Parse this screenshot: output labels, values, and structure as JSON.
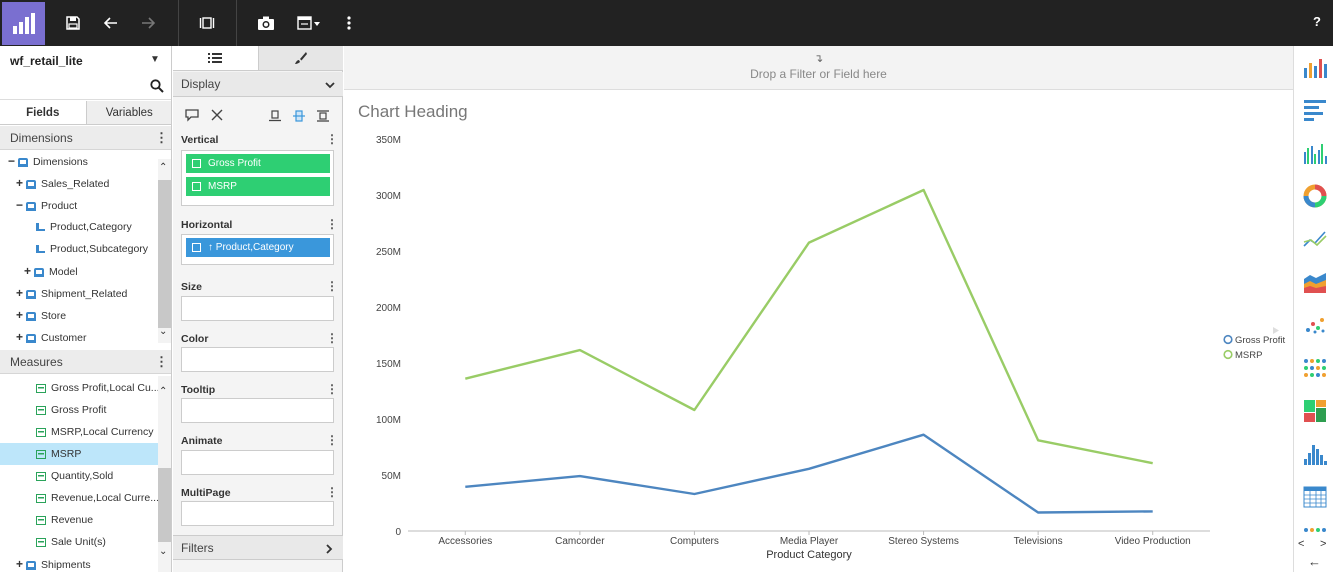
{
  "toolbar": {
    "help_label": "?"
  },
  "left_panel": {
    "datasource": "wf_retail_lite",
    "tabs": [
      "Fields",
      "Variables"
    ],
    "dimensions_header": "Dimensions",
    "dimensions_tree": [
      {
        "label": "Dimensions",
        "toggle": "−",
        "icon": "dim"
      },
      {
        "label": "Sales_Related",
        "toggle": "+",
        "icon": "dim"
      },
      {
        "label": "Product",
        "toggle": "−",
        "icon": "dim"
      },
      {
        "label": "Product,Category",
        "toggle": "",
        "icon": "lvl"
      },
      {
        "label": "Product,Subcategory",
        "toggle": "",
        "icon": "lvl"
      },
      {
        "label": "Model",
        "toggle": "+",
        "icon": "dim"
      },
      {
        "label": "Shipment_Related",
        "toggle": "+",
        "icon": "dim"
      },
      {
        "label": "Store",
        "toggle": "+",
        "icon": "dim"
      },
      {
        "label": "Customer",
        "toggle": "+",
        "icon": "dim"
      }
    ],
    "measures_header": "Measures",
    "measures_tree": [
      {
        "label": "Gross Profit,Local Cu...",
        "toggle": "",
        "icon": "meas"
      },
      {
        "label": "Gross Profit",
        "toggle": "",
        "icon": "meas"
      },
      {
        "label": "MSRP,Local Currency",
        "toggle": "",
        "icon": "meas"
      },
      {
        "label": "MSRP",
        "toggle": "",
        "icon": "meas",
        "selected": true
      },
      {
        "label": "Quantity,Sold",
        "toggle": "",
        "icon": "meas"
      },
      {
        "label": "Revenue,Local Curre...",
        "toggle": "",
        "icon": "meas"
      },
      {
        "label": "Revenue",
        "toggle": "",
        "icon": "meas"
      },
      {
        "label": "Sale Unit(s)",
        "toggle": "",
        "icon": "meas"
      },
      {
        "label": "Shipments",
        "toggle": "+",
        "icon": "dim"
      }
    ]
  },
  "query_panel": {
    "display_header": "Display",
    "vertical_label": "Vertical",
    "vertical_items": [
      "Gross Profit",
      "MSRP"
    ],
    "horizontal_label": "Horizontal",
    "horizontal_items": [
      "↑ Product,Category"
    ],
    "size_label": "Size",
    "color_label": "Color",
    "tooltip_label": "Tooltip",
    "animate_label": "Animate",
    "multipage_label": "MultiPage",
    "filters_header": "Filters"
  },
  "canvas": {
    "drop_hint": "Drop a Filter or Field here",
    "chart_heading": "Chart Heading"
  },
  "colors": {
    "gross_profit": "#4d86c0",
    "msrp": "#99cc66",
    "accent": "#7a6fd0"
  },
  "chart_data": {
    "type": "line",
    "title": "Chart Heading",
    "xlabel": "Product Category",
    "ylabel": "",
    "categories": [
      "Accessories",
      "Camcorder",
      "Computers",
      "Media Player",
      "Stereo Systems",
      "Televisions",
      "Video Production"
    ],
    "y_ticks": [
      "0",
      "50M",
      "100M",
      "150M",
      "200M",
      "250M",
      "300M",
      "350M"
    ],
    "ylim": [
      0,
      350000000
    ],
    "grid": false,
    "legend_position": "right",
    "series": [
      {
        "name": "Gross Profit",
        "color": "#4d86c0",
        "values": [
          39500000,
          49000000,
          33000000,
          55500000,
          86000000,
          16500000,
          17500000
        ]
      },
      {
        "name": "MSRP",
        "color": "#99cc66",
        "values": [
          136000000,
          161500000,
          108000000,
          257500000,
          304500000,
          81000000,
          60500000
        ]
      }
    ]
  }
}
